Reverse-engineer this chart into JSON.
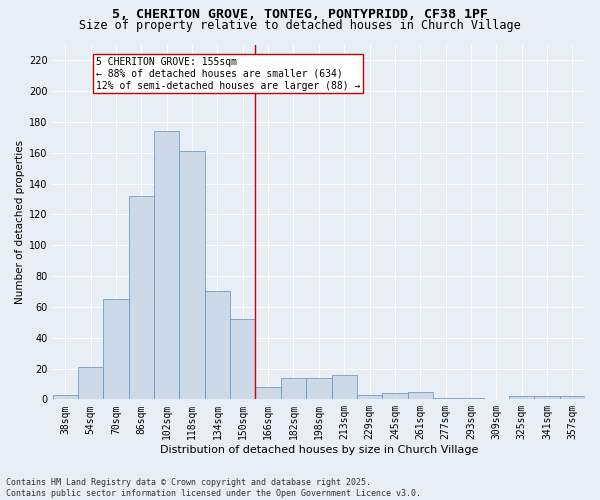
{
  "title": "5, CHERITON GROVE, TONTEG, PONTYPRIDD, CF38 1PF",
  "subtitle": "Size of property relative to detached houses in Church Village",
  "xlabel": "Distribution of detached houses by size in Church Village",
  "ylabel": "Number of detached properties",
  "categories": [
    "38sqm",
    "54sqm",
    "70sqm",
    "86sqm",
    "102sqm",
    "118sqm",
    "134sqm",
    "150sqm",
    "166sqm",
    "182sqm",
    "198sqm",
    "213sqm",
    "229sqm",
    "245sqm",
    "261sqm",
    "277sqm",
    "293sqm",
    "309sqm",
    "325sqm",
    "341sqm",
    "357sqm"
  ],
  "values": [
    3,
    21,
    65,
    132,
    174,
    161,
    70,
    52,
    8,
    14,
    14,
    16,
    3,
    4,
    5,
    1,
    1,
    0,
    2,
    2,
    2
  ],
  "bar_color": "#ccd9e8",
  "bar_edge_color": "#6090b8",
  "bar_edge_width": 0.5,
  "vline_color": "#cc0000",
  "vline_x_index": 7.5,
  "annotation_text": "5 CHERITON GROVE: 155sqm\n← 88% of detached houses are smaller (634)\n12% of semi-detached houses are larger (88) →",
  "annotation_box_color": "#ffffff",
  "annotation_box_edge": "#cc0000",
  "ylim": [
    0,
    230
  ],
  "yticks": [
    0,
    20,
    40,
    60,
    80,
    100,
    120,
    140,
    160,
    180,
    200,
    220
  ],
  "background_color": "#e8eef5",
  "footer": "Contains HM Land Registry data © Crown copyright and database right 2025.\nContains public sector information licensed under the Open Government Licence v3.0.",
  "title_fontsize": 9.5,
  "subtitle_fontsize": 8.5,
  "xlabel_fontsize": 8,
  "ylabel_fontsize": 7.5,
  "tick_fontsize": 7,
  "annotation_fontsize": 7,
  "footer_fontsize": 6
}
